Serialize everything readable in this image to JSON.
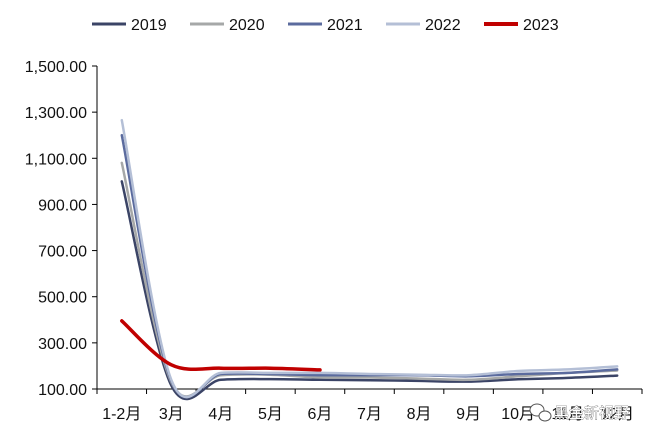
{
  "chart_data": {
    "type": "line",
    "categories": [
      "1-2月",
      "3月",
      "4月",
      "5月",
      "6月",
      "7月",
      "8月",
      "9月",
      "10月",
      "11月",
      "12月"
    ],
    "series": [
      {
        "name": "2019",
        "color": "#3b4466",
        "values": [
          1000,
          115,
          140,
          143,
          140,
          138,
          135,
          132,
          142,
          148,
          158
        ]
      },
      {
        "name": "2020",
        "color": "#a6a8a8",
        "values": [
          1080,
          130,
          160,
          162,
          150,
          150,
          145,
          140,
          155,
          170,
          180
        ]
      },
      {
        "name": "2021",
        "color": "#5b6b9e",
        "values": [
          1200,
          135,
          165,
          165,
          160,
          160,
          160,
          155,
          165,
          170,
          185
        ]
      },
      {
        "name": "2022",
        "color": "#b4bfd6",
        "values": [
          1265,
          140,
          170,
          170,
          170,
          165,
          162,
          160,
          178,
          185,
          198
        ]
      },
      {
        "name": "2023",
        "color": "#c00000",
        "values": [
          395,
          205,
          190,
          190,
          183,
          null,
          null,
          null,
          null,
          null,
          null
        ]
      }
    ],
    "y_ticks": [
      "100.00",
      "300.00",
      "500.00",
      "700.00",
      "900.00",
      "1,100.00",
      "1,300.00",
      "1,500.00"
    ],
    "ylim": [
      100,
      1500
    ],
    "grid": false,
    "legend": "top",
    "watermark": "黑金新视野"
  }
}
